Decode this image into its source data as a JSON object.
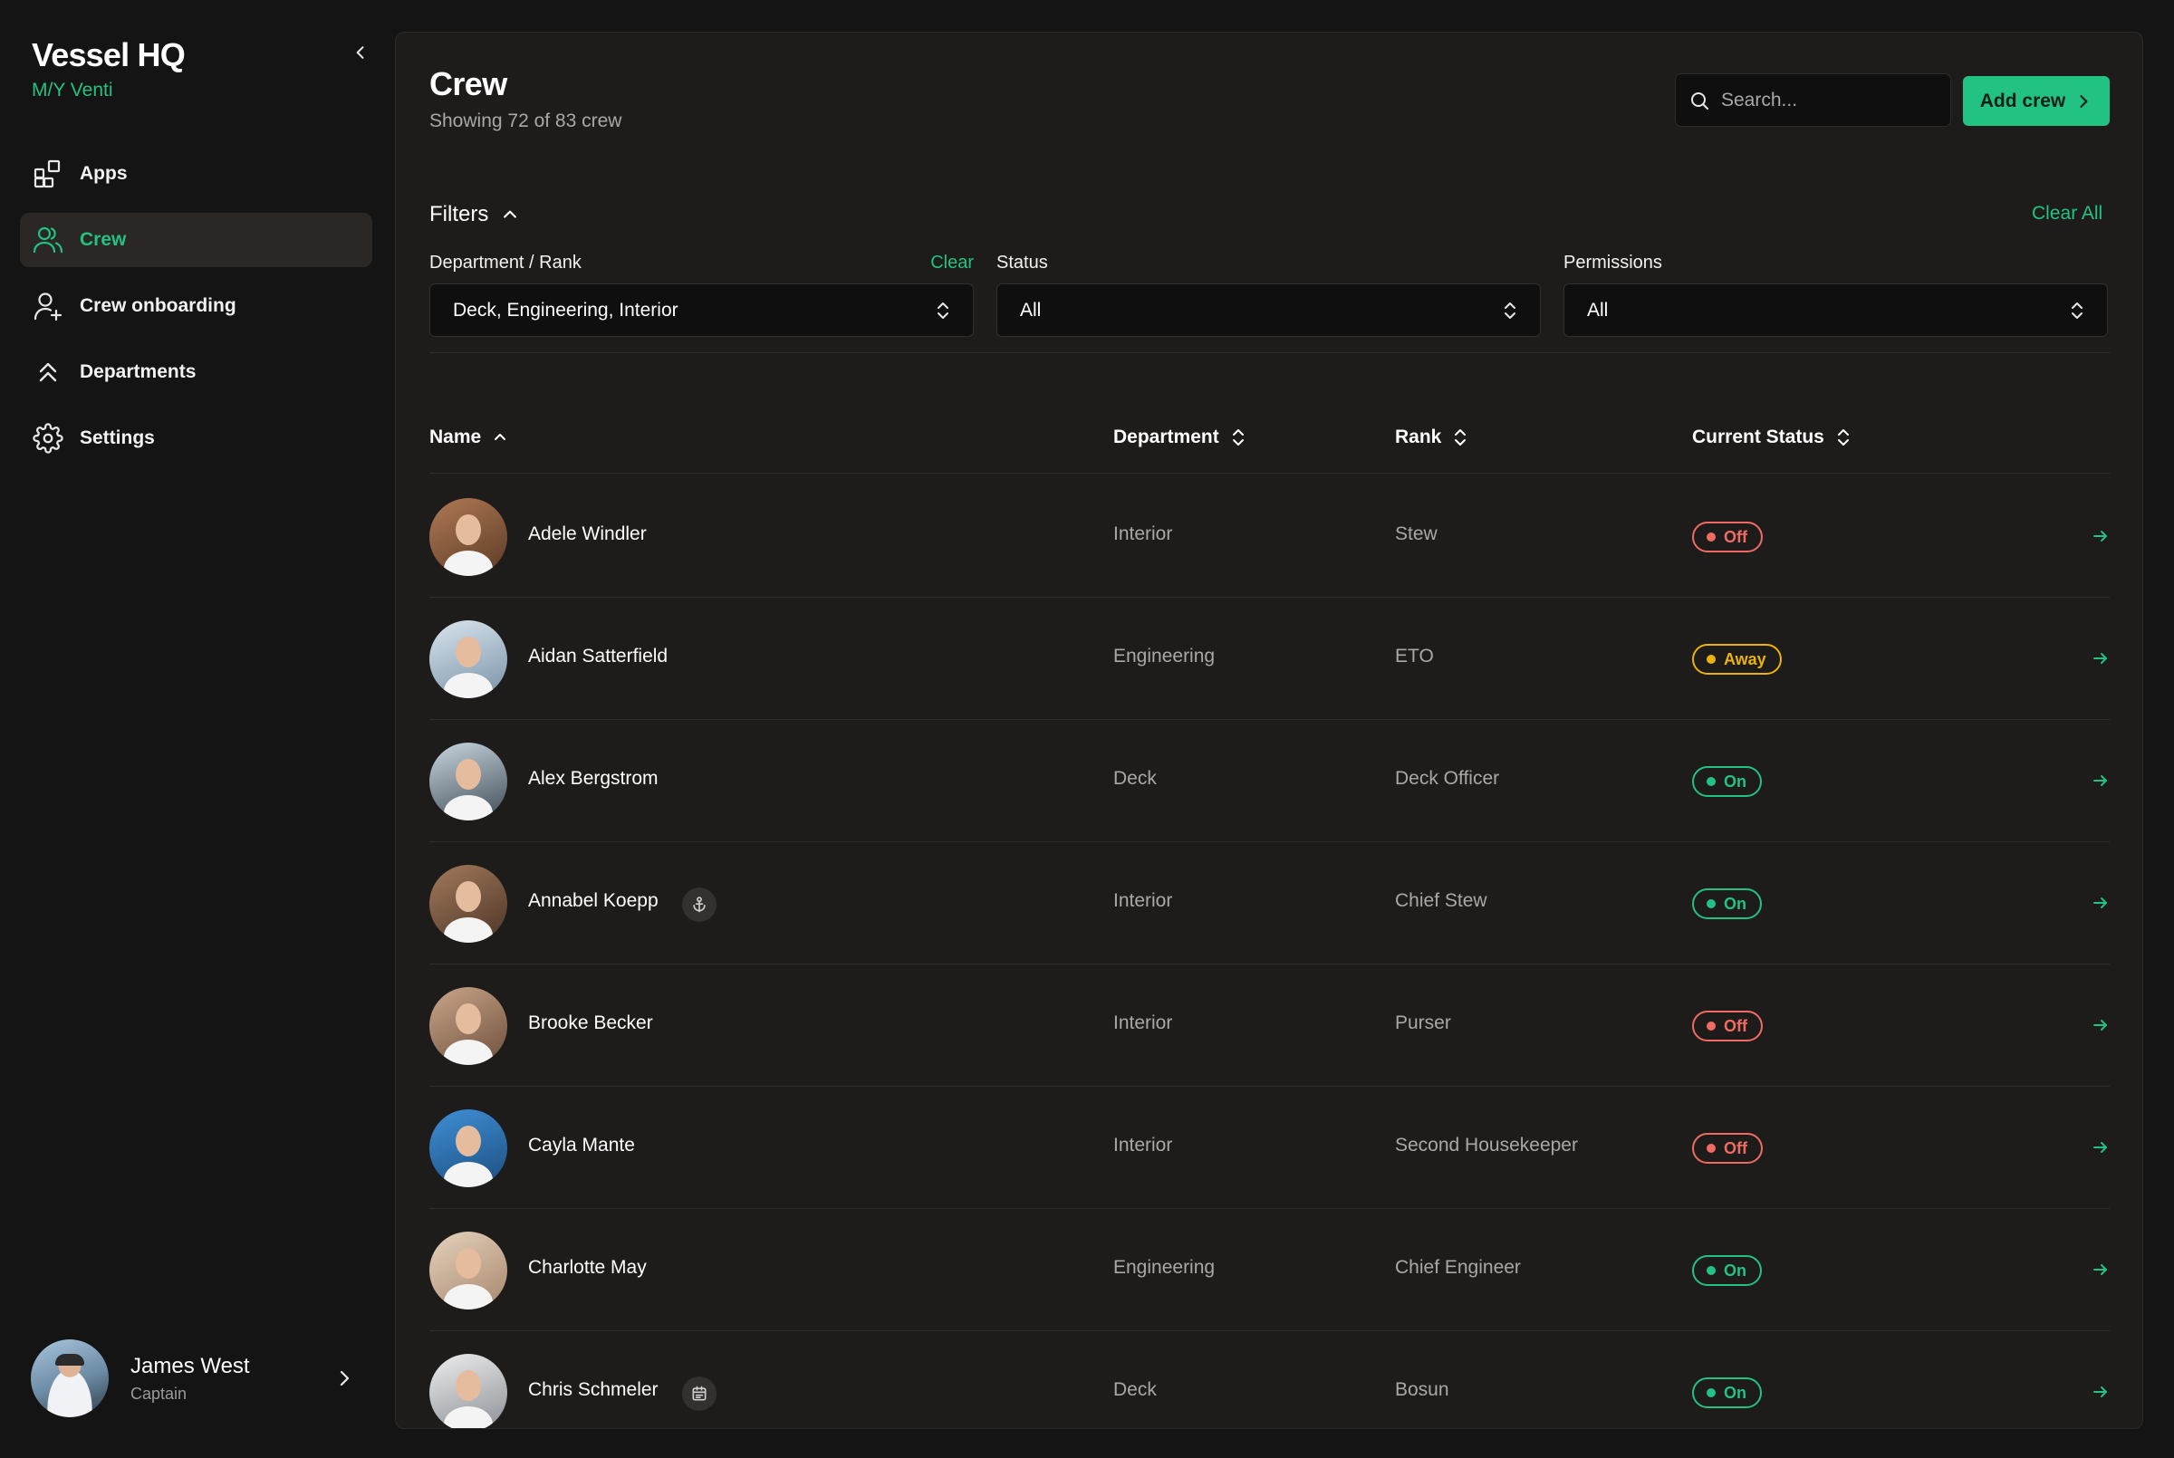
{
  "app": {
    "title": "Vessel HQ",
    "vessel": "M/Y Venti"
  },
  "sidebar": {
    "items": [
      {
        "label": "Apps",
        "icon": "apps-icon"
      },
      {
        "label": "Crew",
        "icon": "users-icon",
        "active": true
      },
      {
        "label": "Crew onboarding",
        "icon": "user-plus-icon"
      },
      {
        "label": "Departments",
        "icon": "double-chevron-up-icon"
      },
      {
        "label": "Settings",
        "icon": "gear-icon"
      }
    ],
    "user": {
      "name": "James West",
      "role": "Captain"
    }
  },
  "header": {
    "title": "Crew",
    "subtitle": "Showing 72 of 83 crew",
    "search_placeholder": "Search...",
    "add_label": "Add crew"
  },
  "filters": {
    "label": "Filters",
    "clear_all": "Clear All",
    "department": {
      "label": "Department / Rank",
      "clear": "Clear",
      "value": "Deck, Engineering, Interior"
    },
    "status": {
      "label": "Status",
      "value": "All"
    },
    "permissions": {
      "label": "Permissions",
      "value": "All"
    }
  },
  "table": {
    "columns": {
      "name": "Name",
      "department": "Department",
      "rank": "Rank",
      "status": "Current Status"
    },
    "rows": [
      {
        "name": "Adele Windler",
        "department": "Interior",
        "rank": "Stew",
        "status": "Off",
        "status_kind": "off"
      },
      {
        "name": "Aidan Satterfield",
        "department": "Engineering",
        "rank": "ETO",
        "status": "Away",
        "status_kind": "away"
      },
      {
        "name": "Alex Bergstrom",
        "department": "Deck",
        "rank": "Deck Officer",
        "status": "On",
        "status_kind": "on"
      },
      {
        "name": "Annabel Koepp",
        "department": "Interior",
        "rank": "Chief Stew",
        "status": "On",
        "status_kind": "on",
        "tag_icon": "anchor-icon"
      },
      {
        "name": "Brooke Becker",
        "department": "Interior",
        "rank": "Purser",
        "status": "Off",
        "status_kind": "off"
      },
      {
        "name": "Cayla Mante",
        "department": "Interior",
        "rank": "Second Housekeeper",
        "status": "Off",
        "status_kind": "off"
      },
      {
        "name": "Charlotte May",
        "department": "Engineering",
        "rank": "Chief Engineer",
        "status": "On",
        "status_kind": "on"
      },
      {
        "name": "Chris Schmeler",
        "department": "Deck",
        "rank": "Bosun",
        "status": "On",
        "status_kind": "on",
        "tag_icon": "calendar-icon"
      }
    ]
  },
  "colors": {
    "accent": "#22c283",
    "status_off": "#ef6b63",
    "status_on": "#22c283",
    "status_away": "#eab308",
    "panel": "#1e1c1b",
    "background": "#141414"
  }
}
